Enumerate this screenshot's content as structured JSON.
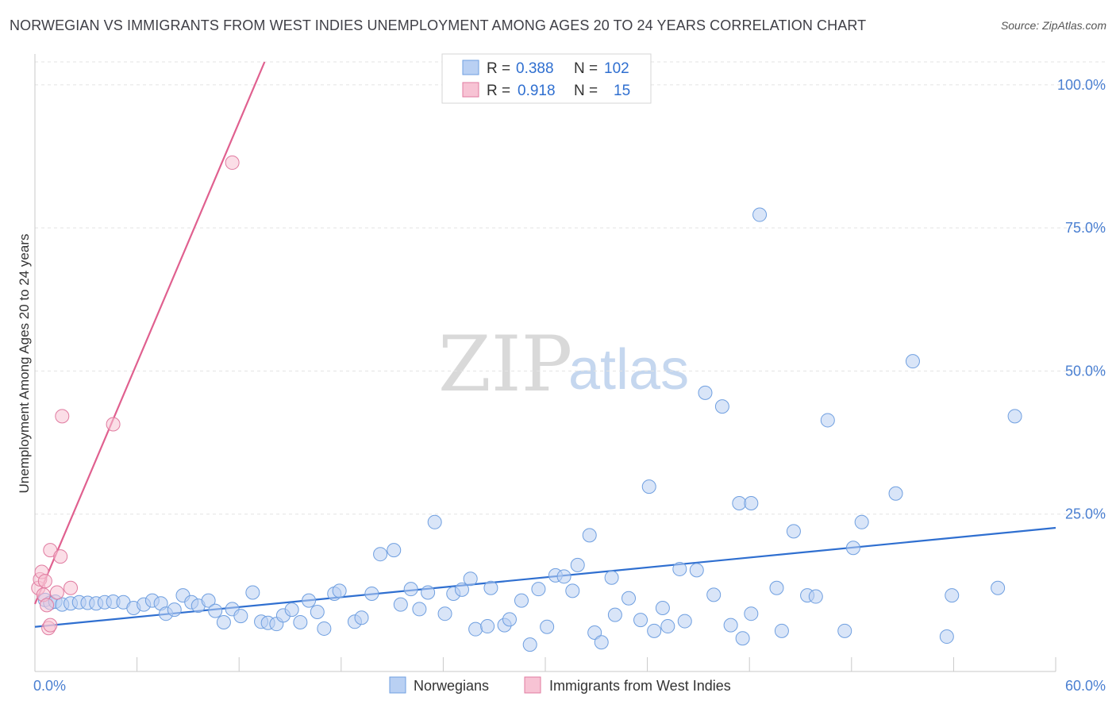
{
  "header": {
    "title": "NORWEGIAN VS IMMIGRANTS FROM WEST INDIES UNEMPLOYMENT AMONG AGES 20 TO 24 YEARS CORRELATION CHART",
    "source": "Source: ZipAtlas.com"
  },
  "legend_box": {
    "row1": {
      "r_label": "R =",
      "r_value": "0.388",
      "n_label": "N =",
      "n_value": "102"
    },
    "row2": {
      "r_label": "R =",
      "r_value": "0.918",
      "n_label": "N =",
      "n_value": "15"
    }
  },
  "watermark": {
    "zip": "ZIP",
    "atlas": "atlas"
  },
  "colors": {
    "blue": "#6f9fe0",
    "blue_fill": "#b9d0f3",
    "blue_line": "#2f6fd0",
    "pink": "#e07ba0",
    "pink_fill": "#f7c3d4",
    "pink_line": "#e0608f"
  },
  "chart_data": {
    "type": "scatter",
    "title": "NORWEGIAN VS IMMIGRANTS FROM WEST INDIES UNEMPLOYMENT AMONG AGES 20 TO 24 YEARS CORRELATION CHART",
    "xlabel": "",
    "ylabel": "Unemployment Among Ages 20 to 24 years",
    "xlim": [
      0,
      60
    ],
    "ylim": [
      0,
      104
    ],
    "x_tick_labels": [
      {
        "value": 0,
        "label": "0.0%"
      },
      {
        "value": 60,
        "label": "60.0%"
      }
    ],
    "y_tick_labels": [
      {
        "value": 25,
        "label": "25.0%"
      },
      {
        "value": 50,
        "label": "50.0%"
      },
      {
        "value": 75,
        "label": "75.0%"
      },
      {
        "value": 100,
        "label": "100.0%"
      }
    ],
    "x_minor_ticks": [
      6,
      12,
      18,
      24,
      30,
      36,
      42,
      48,
      54,
      60
    ],
    "series": [
      {
        "name": "Norwegians",
        "r": 0.388,
        "n": 102,
        "trend": [
          [
            0,
            5.3
          ],
          [
            60,
            22.6
          ]
        ],
        "points": [
          [
            0.6,
            10.0
          ],
          [
            0.9,
            9.5
          ],
          [
            1.2,
            9.7
          ],
          [
            1.6,
            9.2
          ],
          [
            2.1,
            9.4
          ],
          [
            2.6,
            9.6
          ],
          [
            3.1,
            9.5
          ],
          [
            3.6,
            9.4
          ],
          [
            4.1,
            9.6
          ],
          [
            4.6,
            9.7
          ],
          [
            5.2,
            9.6
          ],
          [
            5.8,
            8.6
          ],
          [
            6.4,
            9.2
          ],
          [
            6.9,
            9.9
          ],
          [
            7.4,
            9.4
          ],
          [
            7.7,
            7.6
          ],
          [
            8.2,
            8.3
          ],
          [
            8.7,
            10.8
          ],
          [
            9.2,
            9.6
          ],
          [
            9.6,
            9.0
          ],
          [
            10.2,
            9.9
          ],
          [
            10.6,
            8.1
          ],
          [
            11.1,
            6.1
          ],
          [
            11.6,
            8.4
          ],
          [
            12.1,
            7.2
          ],
          [
            12.8,
            11.3
          ],
          [
            13.3,
            6.2
          ],
          [
            13.7,
            6.0
          ],
          [
            14.2,
            5.8
          ],
          [
            14.6,
            7.3
          ],
          [
            15.1,
            8.3
          ],
          [
            15.6,
            6.1
          ],
          [
            16.1,
            9.9
          ],
          [
            16.6,
            7.9
          ],
          [
            17.0,
            5.0
          ],
          [
            17.6,
            11.1
          ],
          [
            17.9,
            11.6
          ],
          [
            18.8,
            6.2
          ],
          [
            19.2,
            6.9
          ],
          [
            19.8,
            11.1
          ],
          [
            20.3,
            18.0
          ],
          [
            21.1,
            18.7
          ],
          [
            21.5,
            9.2
          ],
          [
            22.1,
            11.9
          ],
          [
            22.6,
            8.4
          ],
          [
            23.1,
            11.3
          ],
          [
            23.5,
            23.6
          ],
          [
            24.1,
            7.6
          ],
          [
            24.6,
            11.1
          ],
          [
            25.1,
            11.8
          ],
          [
            25.6,
            13.7
          ],
          [
            25.9,
            4.9
          ],
          [
            26.6,
            5.4
          ],
          [
            26.8,
            12.1
          ],
          [
            27.6,
            5.6
          ],
          [
            27.9,
            6.6
          ],
          [
            28.6,
            9.9
          ],
          [
            29.1,
            2.2
          ],
          [
            29.6,
            11.9
          ],
          [
            30.1,
            5.3
          ],
          [
            30.6,
            14.3
          ],
          [
            31.1,
            14.1
          ],
          [
            31.6,
            11.6
          ],
          [
            31.9,
            16.1
          ],
          [
            32.6,
            21.3
          ],
          [
            32.9,
            4.3
          ],
          [
            33.3,
            2.6
          ],
          [
            33.9,
            13.9
          ],
          [
            34.1,
            7.4
          ],
          [
            34.9,
            10.3
          ],
          [
            35.6,
            6.5
          ],
          [
            36.1,
            29.8
          ],
          [
            36.4,
            4.6
          ],
          [
            36.9,
            8.6
          ],
          [
            37.2,
            5.4
          ],
          [
            37.9,
            15.4
          ],
          [
            38.2,
            6.3
          ],
          [
            38.9,
            15.2
          ],
          [
            39.4,
            46.2
          ],
          [
            39.9,
            10.9
          ],
          [
            40.4,
            43.8
          ],
          [
            40.9,
            5.6
          ],
          [
            41.6,
            3.3
          ],
          [
            41.4,
            26.9
          ],
          [
            42.1,
            26.9
          ],
          [
            42.1,
            7.6
          ],
          [
            42.6,
            77.3
          ],
          [
            43.6,
            12.1
          ],
          [
            43.9,
            4.6
          ],
          [
            44.6,
            22.0
          ],
          [
            45.4,
            10.8
          ],
          [
            45.9,
            10.6
          ],
          [
            46.6,
            41.4
          ],
          [
            47.6,
            4.6
          ],
          [
            48.1,
            19.1
          ],
          [
            48.6,
            23.6
          ],
          [
            50.6,
            28.6
          ],
          [
            51.6,
            51.7
          ],
          [
            53.6,
            3.6
          ],
          [
            53.9,
            10.8
          ],
          [
            56.6,
            12.1
          ],
          [
            57.6,
            42.1
          ]
        ]
      },
      {
        "name": "Immigrants from West Indies",
        "r": 0.918,
        "n": 15,
        "trend": [
          [
            0,
            9.3
          ],
          [
            13.5,
            104
          ]
        ],
        "points": [
          [
            0.2,
            12.1
          ],
          [
            0.3,
            13.6
          ],
          [
            0.4,
            14.9
          ],
          [
            0.5,
            10.9
          ],
          [
            0.6,
            13.3
          ],
          [
            0.7,
            9.1
          ],
          [
            0.8,
            5.1
          ],
          [
            0.9,
            5.6
          ],
          [
            0.9,
            18.7
          ],
          [
            1.3,
            11.3
          ],
          [
            1.5,
            17.6
          ],
          [
            1.6,
            42.1
          ],
          [
            2.1,
            12.1
          ],
          [
            4.6,
            40.7
          ],
          [
            11.6,
            86.4
          ]
        ]
      }
    ]
  },
  "bottom_legend": {
    "item1": "Norwegians",
    "item2": "Immigrants from West Indies"
  }
}
